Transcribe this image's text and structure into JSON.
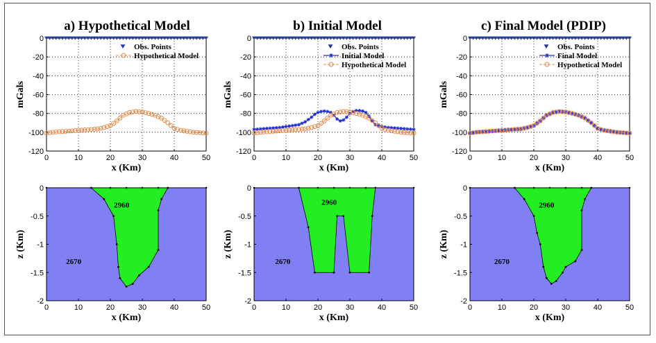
{
  "colors": {
    "obs": "#1f3f9a",
    "hypo": "#e8894a",
    "init": "#1f2fcf",
    "final": "#1f2fcf",
    "basement": "#8080f4",
    "body": "#22ee22",
    "grid": "#000000"
  },
  "chart_data": [
    {
      "id": "a",
      "type": "line",
      "title": "a) Hypothetical Model",
      "xlabel": "x (Km)",
      "ylabel": "mGals",
      "xlim": [
        0,
        50
      ],
      "ylim": [
        -120,
        0
      ],
      "xticks": [
        0,
        10,
        20,
        30,
        40,
        50
      ],
      "yticks": [
        0,
        -20,
        -40,
        -60,
        -80,
        -100,
        -120
      ],
      "grid": true,
      "legend": [
        "Obs. Points",
        "Hypothetical Model"
      ],
      "series": [
        {
          "name": "Obs. Points",
          "style": "obs",
          "y": 0
        },
        {
          "name": "Hypothetical Model",
          "style": "hypo",
          "x": [
            0,
            2,
            4,
            6,
            8,
            10,
            12,
            14,
            16,
            18,
            20,
            22,
            24,
            26,
            28,
            30,
            32,
            34,
            36,
            38,
            40,
            42,
            44,
            46,
            48,
            50
          ],
          "y": [
            -101,
            -100,
            -99.5,
            -99,
            -98.5,
            -98,
            -97.5,
            -97,
            -96.5,
            -95,
            -93,
            -88,
            -82,
            -79,
            -78,
            -78.5,
            -80,
            -82,
            -85,
            -90,
            -96,
            -98,
            -99,
            -100,
            -100.5,
            -101
          ]
        }
      ]
    },
    {
      "id": "b",
      "type": "line",
      "title": "b) Initial Model",
      "xlabel": "x (Km)",
      "ylabel": "mGals",
      "xlim": [
        0,
        50
      ],
      "ylim": [
        -120,
        0
      ],
      "xticks": [
        0,
        10,
        20,
        30,
        40,
        50
      ],
      "yticks": [
        0,
        -20,
        -40,
        -60,
        -80,
        -100,
        -120
      ],
      "grid": true,
      "legend": [
        "Obs. Points",
        "Initial Model",
        "Hypothetical Model"
      ],
      "series": [
        {
          "name": "Obs. Points",
          "style": "obs",
          "y": 0
        },
        {
          "name": "Initial Model",
          "style": "init",
          "x": [
            0,
            2,
            4,
            6,
            8,
            10,
            12,
            14,
            16,
            18,
            19,
            20,
            21,
            22,
            23,
            24,
            25,
            26,
            27,
            28,
            29,
            30,
            31,
            32,
            33,
            34,
            35,
            36,
            37,
            38,
            40,
            42,
            44,
            46,
            48,
            50
          ],
          "y": [
            -97,
            -96.5,
            -96,
            -95.5,
            -95,
            -94,
            -93,
            -92,
            -89,
            -84,
            -81,
            -79,
            -78,
            -77.5,
            -78,
            -79,
            -82,
            -86,
            -88,
            -87,
            -84,
            -80,
            -78,
            -77,
            -77,
            -77.5,
            -79,
            -83,
            -88,
            -92,
            -94,
            -95,
            -95.5,
            -96,
            -96.5,
            -97
          ]
        },
        {
          "name": "Hypothetical Model",
          "style": "hypo",
          "x": [
            0,
            2,
            4,
            6,
            8,
            10,
            12,
            14,
            16,
            18,
            20,
            22,
            24,
            26,
            28,
            30,
            32,
            34,
            36,
            38,
            40,
            42,
            44,
            46,
            48,
            50
          ],
          "y": [
            -101,
            -100,
            -99.5,
            -99,
            -98.5,
            -98,
            -97.5,
            -97,
            -96.5,
            -95,
            -93,
            -88,
            -82,
            -79,
            -78,
            -78.5,
            -80,
            -82,
            -85,
            -90,
            -96,
            -98,
            -99,
            -100,
            -100.5,
            -101
          ]
        }
      ]
    },
    {
      "id": "c",
      "type": "line",
      "title": "c) Final Model (PDIP)",
      "xlabel": "x (Km)",
      "ylabel": "mGals",
      "xlim": [
        0,
        50
      ],
      "ylim": [
        -120,
        0
      ],
      "xticks": [
        0,
        10,
        20,
        30,
        40,
        50
      ],
      "yticks": [
        0,
        -20,
        -40,
        -60,
        -80,
        -100,
        -120
      ],
      "grid": true,
      "legend": [
        "Obs. Points",
        "Final Model",
        "Hypothetical Model"
      ],
      "series": [
        {
          "name": "Obs. Points",
          "style": "obs",
          "y": 0
        },
        {
          "name": "Final Model",
          "style": "final",
          "x": [
            0,
            2,
            4,
            6,
            8,
            10,
            12,
            14,
            16,
            18,
            20,
            22,
            24,
            26,
            28,
            30,
            32,
            34,
            36,
            38,
            40,
            42,
            44,
            46,
            48,
            50
          ],
          "y": [
            -101,
            -100,
            -99.5,
            -99,
            -98.5,
            -98,
            -97.5,
            -97,
            -96.5,
            -95,
            -93,
            -88,
            -82,
            -79,
            -78,
            -78.5,
            -80,
            -82,
            -85,
            -90,
            -96,
            -98,
            -99,
            -100,
            -100.5,
            -101
          ]
        },
        {
          "name": "Hypothetical Model",
          "style": "hypo",
          "x": [
            0,
            2,
            4,
            6,
            8,
            10,
            12,
            14,
            16,
            18,
            20,
            22,
            24,
            26,
            28,
            30,
            32,
            34,
            36,
            38,
            40,
            42,
            44,
            46,
            48,
            50
          ],
          "y": [
            -101,
            -100,
            -99.5,
            -99,
            -98.5,
            -98,
            -97.5,
            -97,
            -96.5,
            -95,
            -93,
            -88,
            -82,
            -79,
            -78,
            -78.5,
            -80,
            -82,
            -85,
            -90,
            -96,
            -98,
            -99,
            -100,
            -100.5,
            -101
          ]
        }
      ]
    },
    {
      "id": "d",
      "type": "area",
      "xlabel": "x (Km)",
      "ylabel": "z (Km)",
      "xlim": [
        0,
        50
      ],
      "ylim": [
        -2,
        0
      ],
      "xticks": [
        0,
        10,
        20,
        30,
        40,
        50
      ],
      "yticks": [
        0,
        -0.5,
        -1,
        -1.5,
        -2
      ],
      "ytick_labels": [
        "0",
        "-0.5",
        "-1",
        "-1.5",
        "-2"
      ],
      "density_body": "2960",
      "density_basement": "2670",
      "density_body_pos": [
        23.5,
        -0.35
      ],
      "density_basement_pos": [
        8.5,
        -1.35
      ],
      "polygon": [
        [
          14,
          0
        ],
        [
          18,
          -0.2
        ],
        [
          21,
          -0.5
        ],
        [
          22,
          -1
        ],
        [
          22.5,
          -1.4
        ],
        [
          23,
          -1.6
        ],
        [
          25,
          -1.75
        ],
        [
          27,
          -1.7
        ],
        [
          29,
          -1.55
        ],
        [
          32,
          -1.4
        ],
        [
          35,
          -1.1
        ],
        [
          35,
          -0.4
        ],
        [
          36,
          -0.2
        ],
        [
          38,
          0
        ]
      ]
    },
    {
      "id": "e",
      "type": "area",
      "xlabel": "x (Km)",
      "ylabel": "z (Km)",
      "xlim": [
        0,
        50
      ],
      "ylim": [
        -2,
        0
      ],
      "xticks": [
        0,
        10,
        20,
        30,
        40,
        50
      ],
      "yticks": [
        0,
        -0.5,
        -1,
        -1.5,
        -2
      ],
      "ytick_labels": [
        "0",
        "-0.5",
        "-1",
        "-1.5",
        "-2"
      ],
      "density_body": "2960",
      "density_basement": "2670",
      "density_body_pos": [
        23.5,
        -0.3
      ],
      "density_basement_pos": [
        9,
        -1.35
      ],
      "polygon": [
        [
          14,
          0
        ],
        [
          17,
          -0.7
        ],
        [
          19,
          -1.5
        ],
        [
          25,
          -1.5
        ],
        [
          26,
          -0.5
        ],
        [
          28,
          -0.5
        ],
        [
          30,
          -1.5
        ],
        [
          36,
          -1.5
        ],
        [
          37,
          -0.5
        ],
        [
          38,
          0
        ]
      ]
    },
    {
      "id": "f",
      "type": "area",
      "xlabel": "x (Km)",
      "ylabel": "z (Km)",
      "xlim": [
        0,
        50
      ],
      "ylim": [
        -2,
        0
      ],
      "xticks": [
        0,
        10,
        20,
        30,
        40,
        50
      ],
      "yticks": [
        0,
        -0.5,
        -1,
        -1.5,
        -2
      ],
      "ytick_labels": [
        "0",
        "-0.5",
        "-1",
        "-1.5",
        "-2"
      ],
      "density_body": "2960",
      "density_basement": "2670",
      "density_body_pos": [
        24,
        -0.35
      ],
      "density_basement_pos": [
        10,
        -1.35
      ],
      "polygon": [
        [
          14,
          0
        ],
        [
          17,
          -0.2
        ],
        [
          20,
          -0.5
        ],
        [
          21,
          -0.8
        ],
        [
          22,
          -1
        ],
        [
          23,
          -1.4
        ],
        [
          24,
          -1.6
        ],
        [
          25.5,
          -1.7
        ],
        [
          27,
          -1.65
        ],
        [
          29,
          -1.5
        ],
        [
          30,
          -1.4
        ],
        [
          33,
          -1.3
        ],
        [
          35,
          -1.1
        ],
        [
          35,
          -0.4
        ],
        [
          36,
          -0.2
        ],
        [
          38,
          0
        ]
      ]
    }
  ]
}
